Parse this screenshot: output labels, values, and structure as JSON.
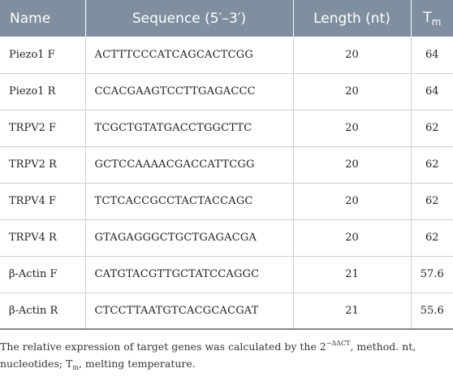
{
  "table": {
    "headers": {
      "name": "Name",
      "sequence": "Sequence (5′–3′)",
      "length": "Length (nt)",
      "tm_main": "T",
      "tm_sub": "m"
    },
    "rows": [
      {
        "name": "Piezo1 F",
        "sequence": "ACTTTCCCATCAGCACTCGG",
        "length": "20",
        "tm": "64"
      },
      {
        "name": "Piezo1 R",
        "sequence": "CCACGAAGTCCTTGAGACCC",
        "length": "20",
        "tm": "64"
      },
      {
        "name": "TRPV2 F",
        "sequence": "TCGCTGTATGACCTGGCTTC",
        "length": "20",
        "tm": "62"
      },
      {
        "name": "TRPV2 R",
        "sequence": "GCTCCAAAACGACCATTCGG",
        "length": "20",
        "tm": "62"
      },
      {
        "name": "TRPV4 F",
        "sequence": "TCTCACCGCCTACTACCAGC",
        "length": "20",
        "tm": "62"
      },
      {
        "name": "TRPV4 R",
        "sequence": "GTAGAGGGCTGCTGAGACGA",
        "length": "20",
        "tm": "62"
      },
      {
        "name": "β-Actin F",
        "sequence": "CATGTACGTTGCTATCCAGGC",
        "length": "21",
        "tm": "57.6"
      },
      {
        "name": "β-Actin R",
        "sequence": "CTCCTTAATGTCACGCACGAT",
        "length": "21",
        "tm": "55.6"
      }
    ]
  },
  "footnote": {
    "part1": "The relative expression of target genes was calculated by the 2",
    "superscript": "−ΔΔCT",
    "part2": ", method. nt, nucleotides; T",
    "subscript": "m",
    "part3": ", melting temperature."
  },
  "colors": {
    "header_background": "#7f8fa0",
    "header_text": "#ffffff",
    "grid_line": "#cfcfcf"
  }
}
